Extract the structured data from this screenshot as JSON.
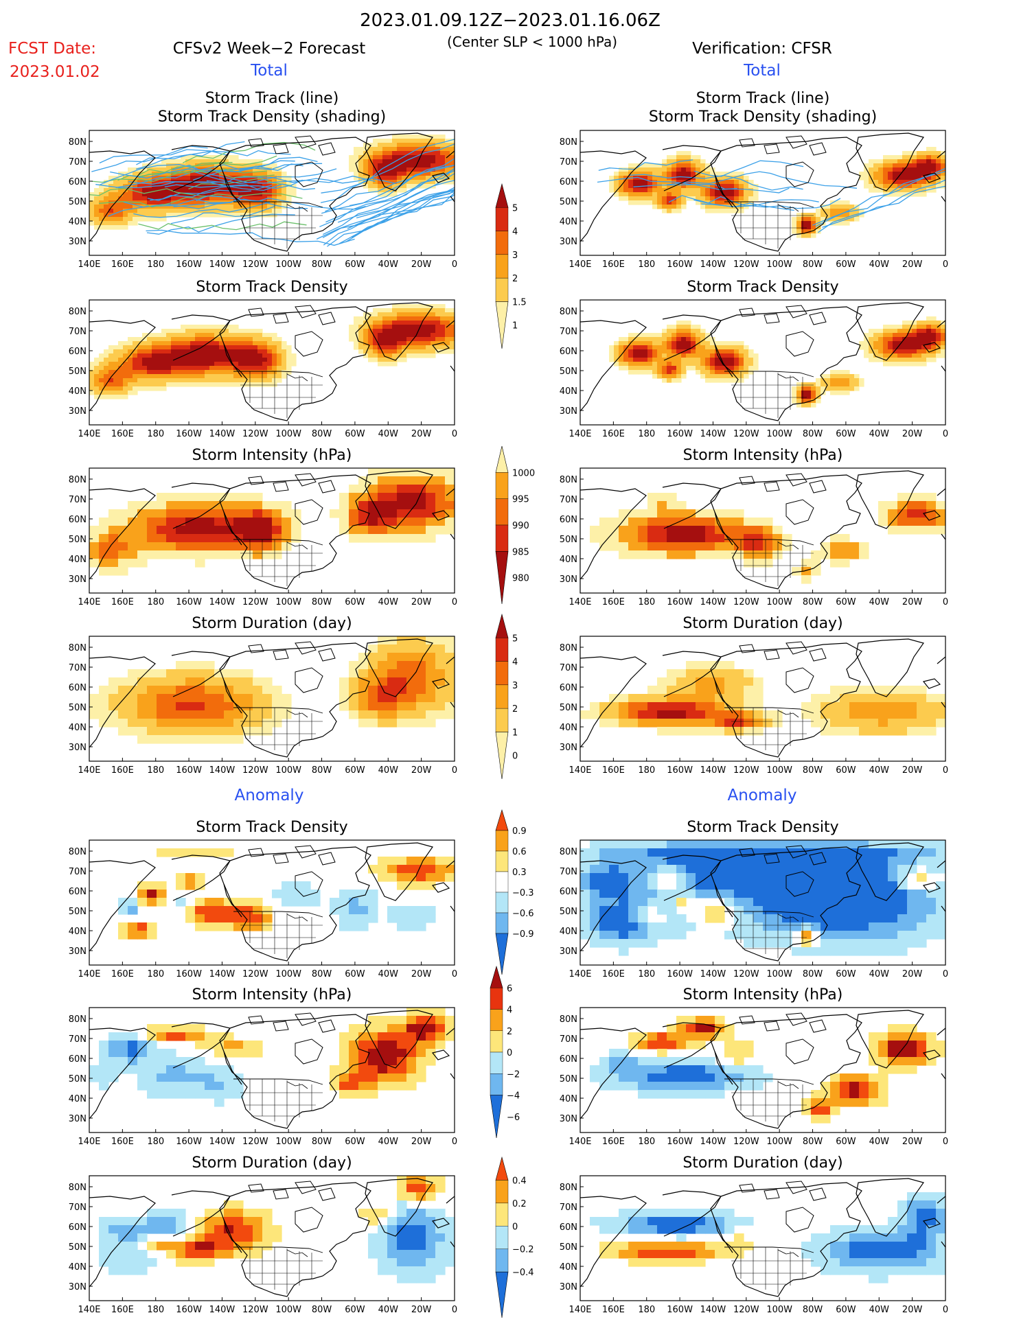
{
  "header": {
    "period": "2023.01.09.12Z−2023.01.16.06Z",
    "condition": "(Center SLP < 1000 hPa)",
    "fcst_label": "FCST Date:",
    "fcst_date": "2023.01.02",
    "left_title": "CFSv2 Week−2 Forecast",
    "right_title": "Verification: CFSR",
    "total_label": "Total",
    "anomaly_label": "Anomaly"
  },
  "panel_titles": {
    "track_line": "Storm Track (line)",
    "track_shading": "Storm Track Density (shading)",
    "density": "Storm Track Density",
    "intensity": "Storm Intensity (hPa)",
    "duration": "Storm Duration (day)"
  },
  "axes": {
    "lon_ticks": [
      "140E",
      "160E",
      "180",
      "160W",
      "140W",
      "120W",
      "100W",
      "80W",
      "60W",
      "40W",
      "20W",
      "0"
    ],
    "lat_ticks": [
      "80N",
      "70N",
      "60N",
      "50N",
      "40N",
      "30N"
    ]
  },
  "colorbars": [
    {
      "id": "density_total",
      "labels": [
        "5",
        "4",
        "3",
        "2",
        "1.5",
        "1"
      ],
      "colors": [
        "#a50f0f",
        "#d92b12",
        "#f26c0c",
        "#f9a21b",
        "#fccb4e",
        "#fdf0a8"
      ]
    },
    {
      "id": "intensity_total",
      "labels": [
        "1000",
        "995",
        "990",
        "985",
        "980"
      ],
      "colors": [
        "#fdf0a8",
        "#f9a21b",
        "#f26c0c",
        "#d92b12",
        "#a50f0f"
      ]
    },
    {
      "id": "duration_total",
      "labels": [
        "5",
        "4",
        "3",
        "2",
        "1",
        "0"
      ],
      "colors": [
        "#a50f0f",
        "#d92b12",
        "#f26c0c",
        "#f9a21b",
        "#fccb4e",
        "#fdf0a8"
      ]
    },
    {
      "id": "density_anom",
      "labels": [
        "0.9",
        "0.6",
        "0.3",
        "−0.3",
        "−0.6",
        "−0.9"
      ],
      "colors": [
        "#f24a0e",
        "#f9a21b",
        "#fde67a",
        "#ffffff",
        "#b3e6f7",
        "#6fb7ef",
        "#1e6fd9"
      ]
    },
    {
      "id": "intensity_anom",
      "labels": [
        "6",
        "4",
        "2",
        "0",
        "−2",
        "−4",
        "−6"
      ],
      "colors": [
        "#a50f0f",
        "#e8340f",
        "#f9a21b",
        "#fde67a",
        "#b3e6f7",
        "#6fb7ef",
        "#1e6fd9"
      ]
    },
    {
      "id": "duration_anom",
      "labels": [
        "0.4",
        "0.2",
        "0",
        "−0.2",
        "−0.4"
      ],
      "colors": [
        "#f24a0e",
        "#f9a21b",
        "#fde67a",
        "#b3e6f7",
        "#6fb7ef",
        "#1e6fd9"
      ]
    }
  ]
}
